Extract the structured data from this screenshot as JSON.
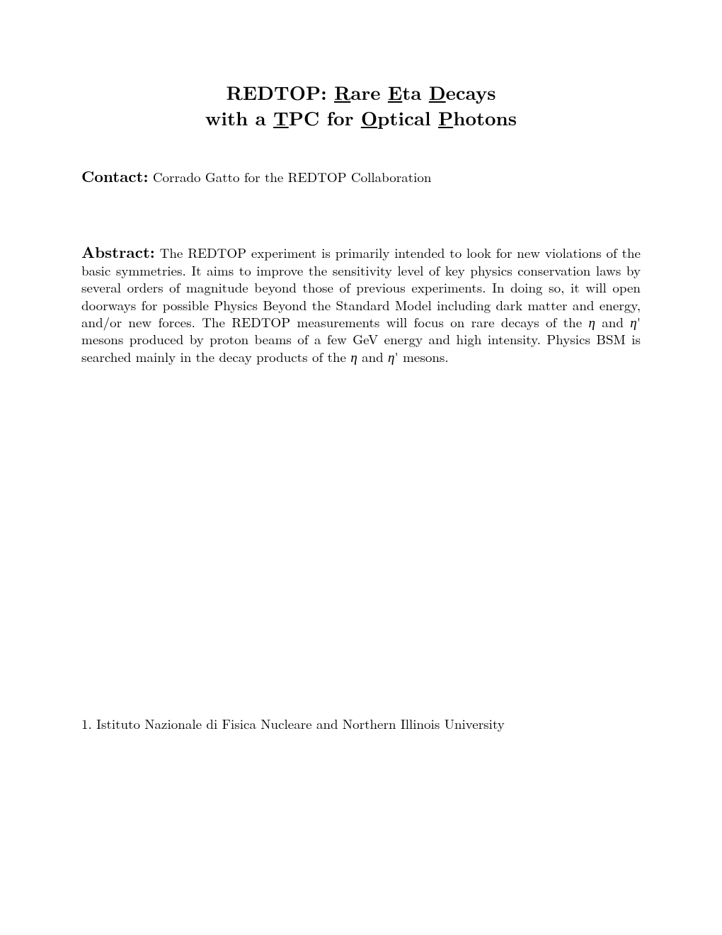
{
  "title": {
    "line1_prefix": "REDTOP: ",
    "line1_R": "R",
    "line1_are": "are ",
    "line1_E": "E",
    "line1_ta": "ta ",
    "line1_D": "D",
    "line1_ecays": "ecays",
    "line2_prefix": "with a ",
    "line2_T": "T",
    "line2_PC": "PC for ",
    "line2_O": "O",
    "line2_ptical": "ptical ",
    "line2_P": "P",
    "line2_hotons": "hotons"
  },
  "contact": {
    "label": "Contact:",
    "text": " Corrado Gatto for the REDTOP Collaboration"
  },
  "abstract": {
    "label": "Abstract:",
    "part1": " The REDTOP experiment is primarily intended to look for new violations of the basic symmetries. It aims to improve the sensitivity level of key physics conservation laws by several orders of magnitude beyond those of previous experiments. In doing so, it will open doorways for possible Physics Beyond the Standard Model including dark matter and energy, and/or new forces. The REDTOP measurements will focus on rare decays of the ",
    "eta1": "η",
    "part2": " and ",
    "eta2": "η",
    "part3": "' mesons produced by proton beams of a few GeV energy and high intensity. Physics BSM is searched mainly in the decay products of the ",
    "eta3": "η",
    "part4": " and ",
    "eta4": "η",
    "part5": "' mesons."
  },
  "footnote": {
    "text": "1. Istituto Nazionale di Fisica Nucleare and Northern Illinois University"
  }
}
